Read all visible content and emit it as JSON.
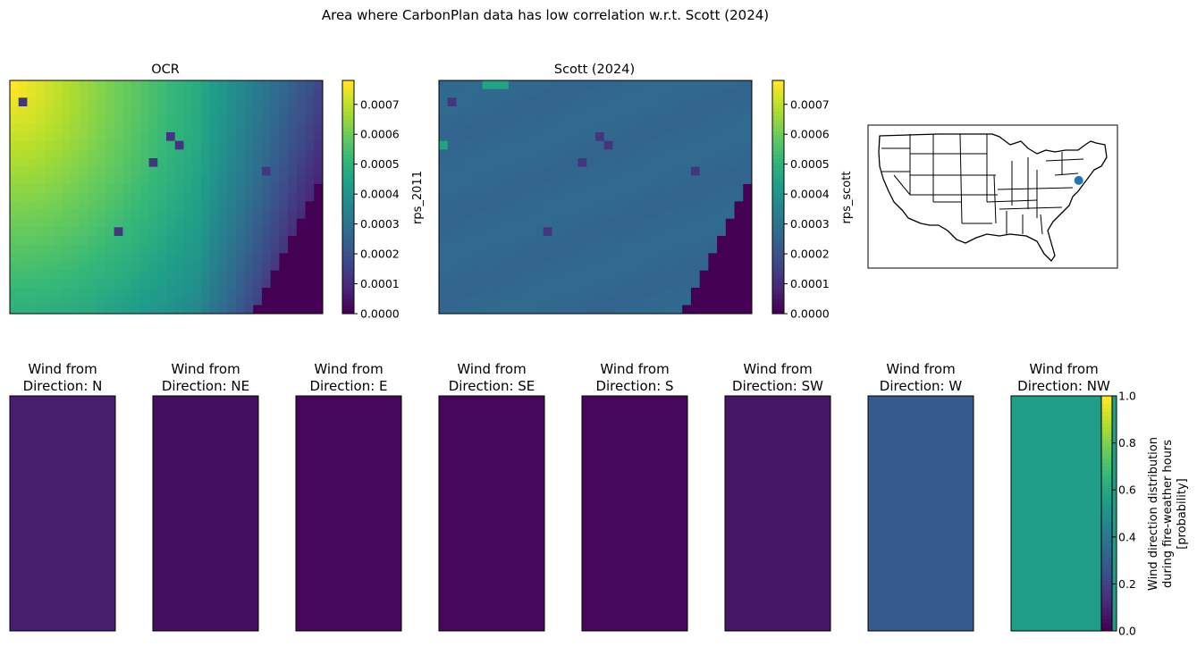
{
  "figure_title": "Area where CarbonPlan data has low correlation w.r.t. Scott (2024)",
  "colormap": "viridis",
  "chart_data": [
    {
      "type": "heatmap",
      "title": "OCR",
      "colorbar_label": "rps_2011",
      "clim": [
        0,
        0.00078
      ],
      "colorbar_ticks": [
        "0.0000",
        "0.0001",
        "0.0002",
        "0.0003",
        "0.0004",
        "0.0005",
        "0.0006",
        "0.0007"
      ],
      "grid_shape": [
        27,
        36
      ],
      "field": "gradient from about 0.00078 at top-left decreasing to about 0.0001 toward bottom-right, with a low (0.0000) triangular block in the bottom-right corner and a few isolated low cells",
      "approx_values": {
        "top_left": 0.00078,
        "center": 0.00045,
        "bottom_left": 0.0004,
        "right_edge": 0.00015,
        "bottom_right_corner": 0.0
      }
    },
    {
      "type": "heatmap",
      "title": "Scott (2024)",
      "colorbar_label": "rps_scott",
      "clim": [
        0,
        0.00078
      ],
      "colorbar_ticks": [
        "0.0000",
        "0.0001",
        "0.0002",
        "0.0003",
        "0.0004",
        "0.0005",
        "0.0006",
        "0.0007"
      ],
      "grid_shape": [
        27,
        36
      ],
      "field": "nearly uniform about 0.00025 with a low (0.0000) triangular block in the bottom-right corner, a few isolated low cells and a few higher cells along the top edge",
      "approx_values": {
        "typical": 0.00025,
        "top_edge_patch": 0.00045,
        "bottom_right_corner": 0.0
      }
    },
    {
      "type": "map",
      "region": "contiguous United States state boundaries",
      "marker": {
        "lon": -74.1,
        "lat": 40.7,
        "color": "#1f77b4"
      }
    },
    {
      "type": "heatmap",
      "panel_title_prefix": "Wind from\nDirection: ",
      "categories": [
        "N",
        "NE",
        "E",
        "SE",
        "S",
        "SW",
        "W",
        "NW"
      ],
      "values": [
        0.08,
        0.04,
        0.02,
        0.02,
        0.02,
        0.06,
        0.28,
        0.56
      ],
      "clim": [
        0,
        1
      ],
      "colorbar_label_lines": [
        "Wind direction distribution",
        "during fire-weather hours",
        "[probability]"
      ],
      "colorbar_ticks": [
        "0.0",
        "0.2",
        "0.4",
        "0.6",
        "0.8",
        "1.0"
      ]
    }
  ]
}
